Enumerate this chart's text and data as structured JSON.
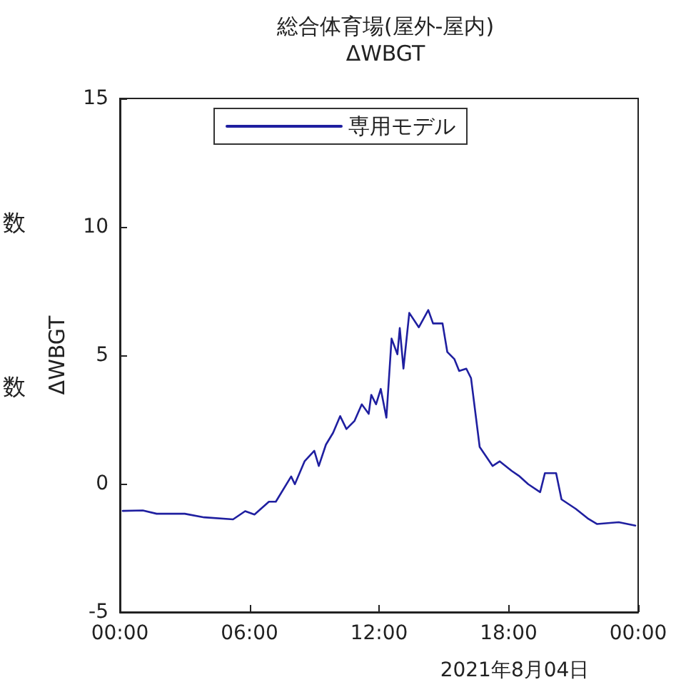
{
  "chart_data": {
    "type": "line",
    "title": "総合体育場(屋外-屋内)",
    "subtitle": "ΔWBGT",
    "xlabel": "2021年8月04日",
    "ylabel": "ΔWBGT",
    "annotations": [
      "数",
      "数"
    ],
    "xlim": [
      0,
      24
    ],
    "xticks": [
      {
        "value": 0,
        "label": "00:00"
      },
      {
        "value": 6,
        "label": "06:00"
      },
      {
        "value": 12,
        "label": "12:00"
      },
      {
        "value": 18,
        "label": "18:00"
      },
      {
        "value": 24,
        "label": "00:00"
      }
    ],
    "ylim": [
      -5,
      15
    ],
    "yticks": [
      -5,
      0,
      5,
      10,
      15
    ],
    "grid": false,
    "legend": "top",
    "marker": "none",
    "line_style": "solid",
    "series": [
      {
        "name": "専用モデル",
        "color": "#1f1fa0",
        "x": [
          0.13,
          1.06,
          1.7,
          3.0,
          3.9,
          5.24,
          5.8,
          6.23,
          6.9,
          7.22,
          7.93,
          8.1,
          8.55,
          9.0,
          9.21,
          9.54,
          9.87,
          10.2,
          10.49,
          10.86,
          11.2,
          11.52,
          11.64,
          11.86,
          12.08,
          12.34,
          12.58,
          12.85,
          12.96,
          13.13,
          13.4,
          13.84,
          14.28,
          14.5,
          14.94,
          15.16,
          15.49,
          15.71,
          16.04,
          16.26,
          16.66,
          17.26,
          17.59,
          18.14,
          18.47,
          18.91,
          19.46,
          19.68,
          20.2,
          20.45,
          21.11,
          21.66,
          22.1,
          23.1,
          23.87
        ],
        "values": [
          -1.06,
          -1.04,
          -1.17,
          -1.17,
          -1.31,
          -1.39,
          -1.07,
          -1.2,
          -0.7,
          -0.7,
          0.28,
          -0.02,
          0.87,
          1.28,
          0.69,
          1.52,
          1.98,
          2.63,
          2.13,
          2.44,
          3.09,
          2.72,
          3.46,
          3.09,
          3.69,
          2.57,
          5.65,
          5.04,
          6.06,
          4.48,
          6.65,
          6.09,
          6.76,
          6.24,
          6.24,
          5.13,
          4.85,
          4.39,
          4.48,
          4.11,
          1.43,
          0.69,
          0.87,
          0.5,
          0.31,
          -0.02,
          -0.33,
          0.41,
          0.41,
          -0.61,
          -0.98,
          -1.35,
          -1.57,
          -1.5,
          -1.63
        ]
      }
    ]
  }
}
